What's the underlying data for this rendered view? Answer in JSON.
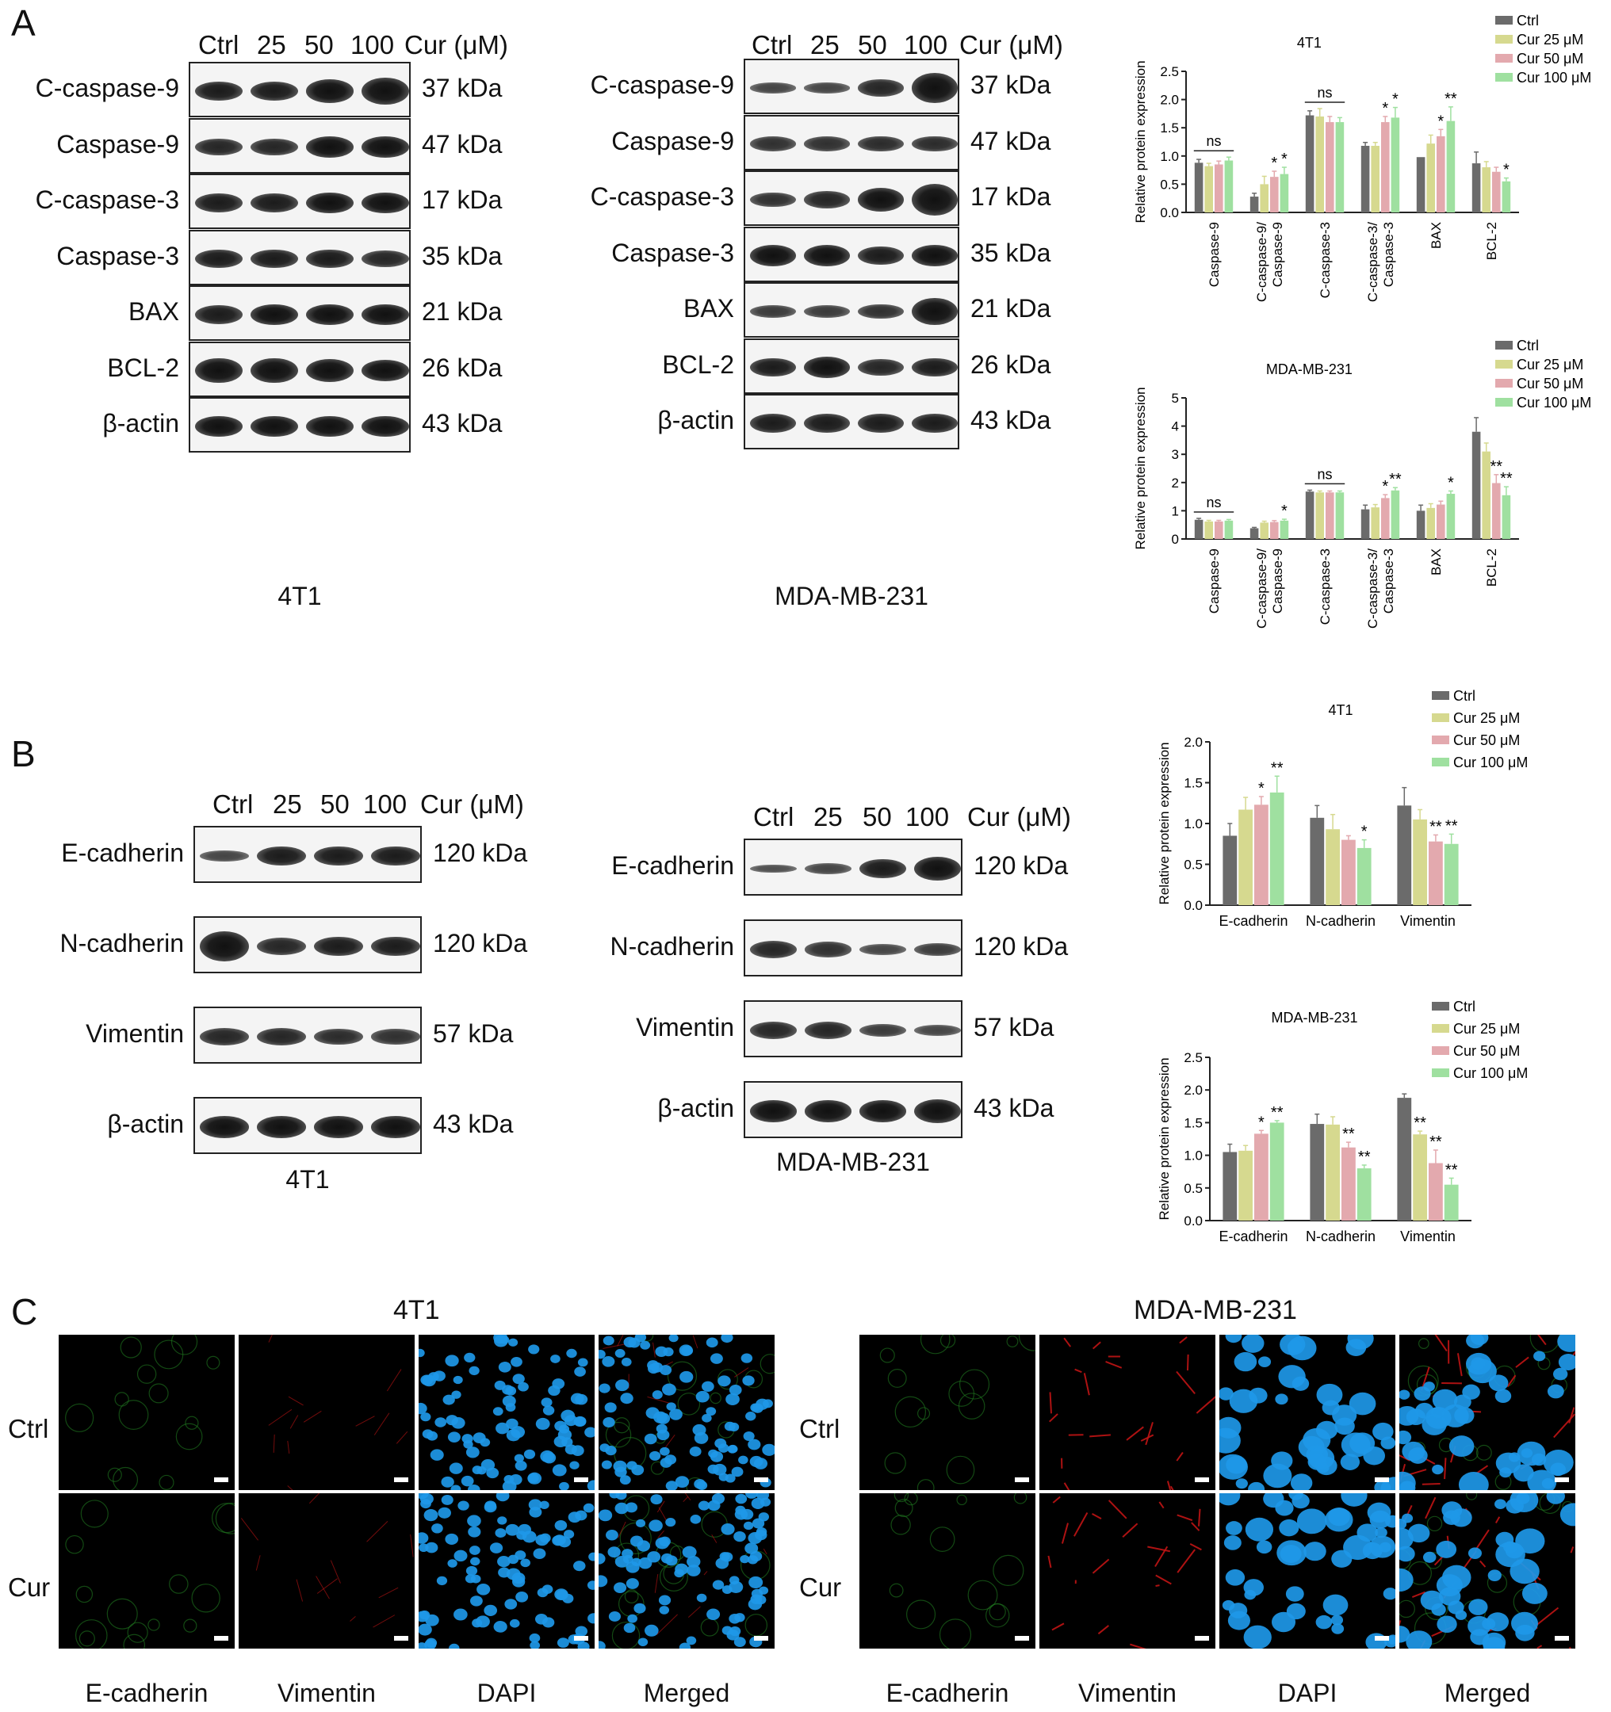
{
  "panel_letters": {
    "a": "A",
    "b": "B",
    "c": "C"
  },
  "blot_headers": {
    "lanes": [
      "Ctrl",
      "25",
      "50",
      "100"
    ],
    "unit": "Cur (μM)"
  },
  "panel_a": {
    "left": {
      "cell": "4T1",
      "rows": [
        {
          "label": "C-caspase-9",
          "kda": "37 kDa"
        },
        {
          "label": "Caspase-9",
          "kda": "47 kDa"
        },
        {
          "label": "C-caspase-3",
          "kda": "17 kDa"
        },
        {
          "label": "Caspase-3",
          "kda": "35 kDa"
        },
        {
          "label": "BAX",
          "kda": "21 kDa"
        },
        {
          "label": "BCL-2",
          "kda": "26 kDa"
        },
        {
          "label": "β-actin",
          "kda": "43 kDa"
        }
      ]
    },
    "right": {
      "cell": "MDA-MB-231",
      "rows": [
        {
          "label": "C-caspase-9",
          "kda": "37 kDa"
        },
        {
          "label": "Caspase-9",
          "kda": "47 kDa"
        },
        {
          "label": "C-caspase-3",
          "kda": "17 kDa"
        },
        {
          "label": "Caspase-3",
          "kda": "35 kDa"
        },
        {
          "label": "BAX",
          "kda": "21 kDa"
        },
        {
          "label": "BCL-2",
          "kda": "26 kDa"
        },
        {
          "label": "β-actin",
          "kda": "43 kDa"
        }
      ]
    }
  },
  "panel_b": {
    "left": {
      "cell": "4T1",
      "rows": [
        {
          "label": "E-cadherin",
          "kda": "120 kDa"
        },
        {
          "label": "N-cadherin",
          "kda": "120 kDa"
        },
        {
          "label": "Vimentin",
          "kda": "57 kDa"
        },
        {
          "label": "β-actin",
          "kda": "43 kDa"
        }
      ]
    },
    "right": {
      "cell": "MDA-MB-231",
      "rows": [
        {
          "label": "E-cadherin",
          "kda": "120 kDa"
        },
        {
          "label": "N-cadherin",
          "kda": "120 kDa"
        },
        {
          "label": "Vimentin",
          "kda": "57 kDa"
        },
        {
          "label": "β-actin",
          "kda": "43 kDa"
        }
      ]
    }
  },
  "colors": {
    "ctrl": "#6b6b6b",
    "cur25": "#d6d98f",
    "cur50": "#e3a9ae",
    "cur100": "#9fe0a0"
  },
  "chart_data": [
    {
      "type": "bar",
      "title": "4T1",
      "ylabel": "Relative protein expression",
      "ylim": [
        0,
        2.5
      ],
      "yticks": [
        "0.0",
        "0.5",
        "1.0",
        "1.5",
        "2.0",
        "2.5"
      ],
      "categories": [
        "Caspase-9",
        "C-caspase-9/ Caspase-9",
        "C-caspase-3",
        "C-caspase-3/ Caspase-3",
        "BAX",
        "BCL-2"
      ],
      "legend": [
        "Ctrl",
        "Cur 25 μM",
        "Cur 50 μM",
        "Cur 100 μM"
      ],
      "series": [
        {
          "name": "Ctrl",
          "values": [
            0.88,
            0.28,
            1.72,
            1.18,
            0.98,
            0.87
          ]
        },
        {
          "name": "Cur 25 μM",
          "values": [
            0.82,
            0.5,
            1.7,
            1.18,
            1.22,
            0.8
          ]
        },
        {
          "name": "Cur 50 μM",
          "values": [
            0.85,
            0.63,
            1.6,
            1.6,
            1.35,
            0.72
          ]
        },
        {
          "name": "Cur 100 μM",
          "values": [
            0.92,
            0.68,
            1.6,
            1.68,
            1.62,
            0.55
          ]
        }
      ],
      "errors": [
        [
          0.06,
          0.06,
          0.08,
          0.06,
          0.0,
          0.2
        ],
        [
          0.05,
          0.14,
          0.14,
          0.06,
          0.15,
          0.1
        ],
        [
          0.06,
          0.1,
          0.1,
          0.1,
          0.12,
          0.08
        ],
        [
          0.06,
          0.12,
          0.08,
          0.18,
          0.25,
          0.06
        ]
      ],
      "annotations": [
        {
          "category": 0,
          "text": "ns",
          "type": "ns"
        },
        {
          "category": 1,
          "series": 2,
          "text": "*"
        },
        {
          "category": 1,
          "series": 3,
          "text": "*"
        },
        {
          "category": 2,
          "text": "ns",
          "type": "ns"
        },
        {
          "category": 3,
          "series": 2,
          "text": "*"
        },
        {
          "category": 3,
          "series": 3,
          "text": "*"
        },
        {
          "category": 4,
          "series": 2,
          "text": "*"
        },
        {
          "category": 4,
          "series": 3,
          "text": "**"
        },
        {
          "category": 5,
          "series": 3,
          "text": "*"
        }
      ]
    },
    {
      "type": "bar",
      "title": "MDA-MB-231",
      "ylabel": "Relative protein expression",
      "ylim": [
        0,
        5
      ],
      "yticks": [
        "0",
        "1",
        "2",
        "3",
        "4",
        "5"
      ],
      "categories": [
        "Caspase-9",
        "C-caspase-9/ Caspase-9",
        "C-caspase-3",
        "C-caspase-3/ Caspase-3",
        "BAX",
        "BCL-2"
      ],
      "legend": [
        "Ctrl",
        "Cur 25 μM",
        "Cur 50 μM",
        "Cur 100 μM"
      ],
      "series": [
        {
          "name": "Ctrl",
          "values": [
            0.68,
            0.38,
            1.68,
            1.05,
            1.0,
            3.8
          ]
        },
        {
          "name": "Cur 25 μM",
          "values": [
            0.62,
            0.58,
            1.65,
            1.12,
            1.1,
            3.1
          ]
        },
        {
          "name": "Cur 50 μM",
          "values": [
            0.62,
            0.6,
            1.65,
            1.45,
            1.22,
            1.98
          ]
        },
        {
          "name": "Cur 100 μM",
          "values": [
            0.65,
            0.65,
            1.65,
            1.72,
            1.6,
            1.55
          ]
        }
      ],
      "errors": [
        [
          0.05,
          0.03,
          0.05,
          0.15,
          0.2,
          0.5
        ],
        [
          0.04,
          0.05,
          0.05,
          0.1,
          0.15,
          0.3
        ],
        [
          0.04,
          0.05,
          0.05,
          0.12,
          0.12,
          0.3
        ],
        [
          0.04,
          0.05,
          0.05,
          0.1,
          0.1,
          0.3
        ]
      ],
      "annotations": [
        {
          "category": 0,
          "text": "ns",
          "type": "ns"
        },
        {
          "category": 1,
          "series": 3,
          "text": "*"
        },
        {
          "category": 2,
          "text": "ns",
          "type": "ns"
        },
        {
          "category": 3,
          "series": 2,
          "text": "*"
        },
        {
          "category": 3,
          "series": 3,
          "text": "**"
        },
        {
          "category": 4,
          "series": 3,
          "text": "*"
        },
        {
          "category": 5,
          "series": 2,
          "text": "**"
        },
        {
          "category": 5,
          "series": 3,
          "text": "**"
        }
      ]
    },
    {
      "type": "bar",
      "title": "4T1",
      "ylabel": "Relative protein expression",
      "ylim": [
        0,
        2.0
      ],
      "yticks": [
        "0.0",
        "0.5",
        "1.0",
        "1.5",
        "2.0"
      ],
      "categories": [
        "E-cadherin",
        "N-cadherin",
        "Vimentin"
      ],
      "legend": [
        "Ctrl",
        "Cur 25 μM",
        "Cur 50 μM",
        "Cur 100 μM"
      ],
      "series": [
        {
          "name": "Ctrl",
          "values": [
            0.85,
            1.07,
            1.22
          ]
        },
        {
          "name": "Cur 25 μM",
          "values": [
            1.17,
            0.93,
            1.05
          ]
        },
        {
          "name": "Cur 50 μM",
          "values": [
            1.23,
            0.8,
            0.78
          ]
        },
        {
          "name": "Cur 100 μM",
          "values": [
            1.38,
            0.7,
            0.75
          ]
        }
      ],
      "errors": [
        [
          0.15,
          0.15,
          0.22
        ],
        [
          0.15,
          0.18,
          0.12
        ],
        [
          0.1,
          0.05,
          0.08
        ],
        [
          0.2,
          0.1,
          0.12
        ]
      ],
      "annotations": [
        {
          "category": 0,
          "series": 2,
          "text": "*"
        },
        {
          "category": 0,
          "series": 3,
          "text": "**"
        },
        {
          "category": 1,
          "series": 3,
          "text": "*"
        },
        {
          "category": 2,
          "series": 2,
          "text": "**"
        },
        {
          "category": 2,
          "series": 3,
          "text": "**"
        }
      ]
    },
    {
      "type": "bar",
      "title": "MDA-MB-231",
      "ylabel": "Relative protein expression",
      "ylim": [
        0,
        2.5
      ],
      "yticks": [
        "0.0",
        "0.5",
        "1.0",
        "1.5",
        "2.0",
        "2.5"
      ],
      "categories": [
        "E-cadherin",
        "N-cadherin",
        "Vimentin"
      ],
      "legend": [
        "Ctrl",
        "Cur 25 μM",
        "Cur 50 μM",
        "Cur 100 μM"
      ],
      "series": [
        {
          "name": "Ctrl",
          "values": [
            1.05,
            1.48,
            1.88
          ]
        },
        {
          "name": "Cur 25 μM",
          "values": [
            1.07,
            1.47,
            1.32
          ]
        },
        {
          "name": "Cur 50 μM",
          "values": [
            1.33,
            1.12,
            0.88
          ]
        },
        {
          "name": "Cur 100 μM",
          "values": [
            1.5,
            0.8,
            0.55
          ]
        }
      ],
      "errors": [
        [
          0.12,
          0.15,
          0.06
        ],
        [
          0.08,
          0.12,
          0.05
        ],
        [
          0.05,
          0.08,
          0.2
        ],
        [
          0.03,
          0.05,
          0.1
        ]
      ],
      "annotations": [
        {
          "category": 0,
          "series": 2,
          "text": "*"
        },
        {
          "category": 0,
          "series": 3,
          "text": "**"
        },
        {
          "category": 1,
          "series": 2,
          "text": "**"
        },
        {
          "category": 1,
          "series": 3,
          "text": "**"
        },
        {
          "category": 2,
          "series": 1,
          "text": "**"
        },
        {
          "category": 2,
          "series": 2,
          "text": "**"
        },
        {
          "category": 2,
          "series": 3,
          "text": "**"
        }
      ]
    }
  ],
  "panel_c": {
    "left_title": "4T1",
    "right_title": "MDA-MB-231",
    "row_labels": [
      "Ctrl",
      "Cur"
    ],
    "column_labels": [
      "E-cadherin",
      "Vimentin",
      "DAPI",
      "Merged"
    ]
  }
}
